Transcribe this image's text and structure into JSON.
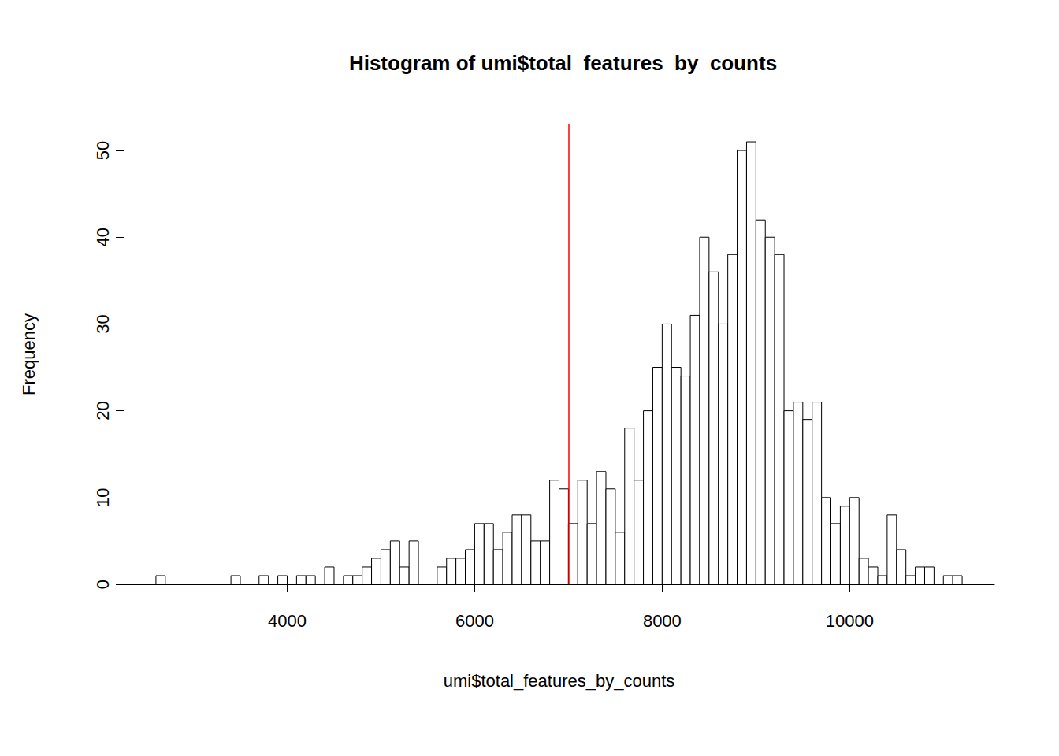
{
  "chart_data": {
    "type": "histogram",
    "title": "Histogram of umi$total_features_by_counts",
    "x_label": "umi$total_features_by_counts",
    "y_label": "Frequency",
    "bins": [
      2600,
      2700,
      2800,
      2900,
      3000,
      3100,
      3200,
      3300,
      3400,
      3500,
      3600,
      3700,
      3800,
      3900,
      4000,
      4100,
      4200,
      4300,
      4400,
      4500,
      4600,
      4700,
      4800,
      4900,
      5000,
      5100,
      5200,
      5300,
      5400,
      5500,
      5600,
      5700,
      5800,
      5900,
      6000,
      6100,
      6200,
      6300,
      6400,
      6500,
      6600,
      6700,
      6800,
      6900,
      7000,
      7100,
      7200,
      7300,
      7400,
      7500,
      7600,
      7700,
      7800,
      7900,
      8000,
      8100,
      8200,
      8300,
      8400,
      8500,
      8600,
      8700,
      8800,
      8900,
      9000,
      9100,
      9200,
      9300,
      9400,
      9500,
      9600,
      9700,
      9800,
      9900,
      10000,
      10100,
      10200,
      10300,
      10400,
      10500,
      10600,
      10700,
      10800,
      10900,
      11000,
      11100,
      11200
    ],
    "values": [
      1,
      0,
      0,
      0,
      0,
      0,
      0,
      0,
      1,
      0,
      0,
      1,
      0,
      1,
      0,
      1,
      1,
      0,
      2,
      0,
      1,
      1,
      2,
      3,
      4,
      5,
      2,
      5,
      0,
      0,
      2,
      3,
      3,
      4,
      7,
      7,
      4,
      6,
      8,
      8,
      5,
      5,
      12,
      11,
      7,
      12,
      7,
      13,
      11,
      6,
      18,
      12,
      20,
      25,
      30,
      25,
      24,
      31,
      40,
      36,
      30,
      38,
      50,
      51,
      42,
      40,
      38,
      20,
      21,
      19,
      21,
      10,
      7,
      9,
      10,
      3,
      2,
      1,
      8,
      4,
      1,
      2,
      2,
      0,
      1,
      1
    ],
    "color": "#ffffff",
    "vline": {
      "x": 7000,
      "color": "#ff0000"
    },
    "xlim": [
      2256,
      11544
    ],
    "xticks": [
      4000,
      6000,
      8000,
      10000
    ],
    "ylim": [
      0,
      53
    ],
    "yticks": [
      0,
      10,
      20,
      30,
      40,
      50
    ],
    "grid": false
  }
}
